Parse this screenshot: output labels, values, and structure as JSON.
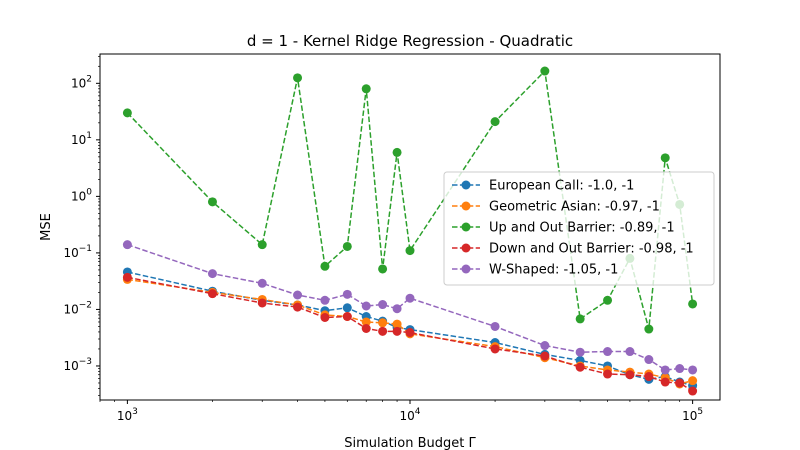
{
  "chart_data": {
    "type": "line",
    "title": "d = 1 - Kernel Ridge Regression - Quadratic",
    "xlabel": "Simulation Budget Γ",
    "ylabel": "MSE",
    "xscale": "log",
    "yscale": "log",
    "xlim": [
      800,
      125000
    ],
    "ylim": [
      0.00025,
      330
    ],
    "x_ticks": [
      {
        "value": 1000,
        "base": "10",
        "exp": "3"
      },
      {
        "value": 10000,
        "base": "10",
        "exp": "4"
      },
      {
        "value": 100000,
        "base": "10",
        "exp": "5"
      }
    ],
    "y_ticks": [
      {
        "value": 0.001,
        "base": "10",
        "exp": "−3"
      },
      {
        "value": 0.01,
        "base": "10",
        "exp": "−2"
      },
      {
        "value": 0.1,
        "base": "10",
        "exp": "−1"
      },
      {
        "value": 1,
        "base": "10",
        "exp": "0"
      },
      {
        "value": 10,
        "base": "10",
        "exp": "1"
      },
      {
        "value": 100,
        "base": "10",
        "exp": "2"
      }
    ],
    "grid": false,
    "legend_position": "right",
    "x": [
      1000,
      2000,
      3000,
      4000,
      5000,
      6000,
      7000,
      8000,
      9000,
      10000,
      20000,
      30000,
      40000,
      50000,
      60000,
      70000,
      80000,
      90000,
      100000
    ],
    "series": [
      {
        "name": "European Call: -1.0, -1",
        "color": "#1f77b4",
        "values": [
          0.046,
          0.021,
          0.0145,
          0.012,
          0.0095,
          0.0107,
          0.0075,
          0.0062,
          0.0048,
          0.0044,
          0.0026,
          0.0016,
          0.00125,
          0.001,
          0.0007,
          0.00058,
          0.00065,
          0.00052,
          0.00045
        ]
      },
      {
        "name": "Geometric Asian: -0.97, -1",
        "color": "#ff7f0e",
        "values": [
          0.034,
          0.02,
          0.015,
          0.012,
          0.008,
          0.0075,
          0.006,
          0.0058,
          0.0055,
          0.0037,
          0.0022,
          0.0014,
          0.001,
          0.00085,
          0.00078,
          0.00072,
          0.00062,
          0.00048,
          0.00055
        ]
      },
      {
        "name": "Up and Out Barrier: -0.89, -1",
        "color": "#2ca02c",
        "values": [
          30,
          0.8,
          0.14,
          125,
          0.058,
          0.13,
          80,
          0.052,
          6.0,
          0.11,
          21,
          165,
          0.0068,
          0.0145,
          0.08,
          0.0045,
          4.8,
          0.72,
          0.0125
        ]
      },
      {
        "name": "Down and Out Barrier: -0.98, -1",
        "color": "#d62728",
        "values": [
          0.037,
          0.019,
          0.013,
          0.011,
          0.0072,
          0.0075,
          0.0046,
          0.0041,
          0.0041,
          0.0039,
          0.002,
          0.0015,
          0.00095,
          0.00072,
          0.0007,
          0.00065,
          0.00052,
          0.0005,
          0.00036
        ]
      },
      {
        "name": "W-Shaped: -1.05, -1",
        "color": "#9467bd",
        "values": [
          0.14,
          0.043,
          0.029,
          0.018,
          0.0145,
          0.0185,
          0.0115,
          0.0122,
          0.0103,
          0.0158,
          0.005,
          0.0023,
          0.00175,
          0.0018,
          0.0018,
          0.0013,
          0.00085,
          0.0009,
          0.00085
        ]
      }
    ]
  }
}
